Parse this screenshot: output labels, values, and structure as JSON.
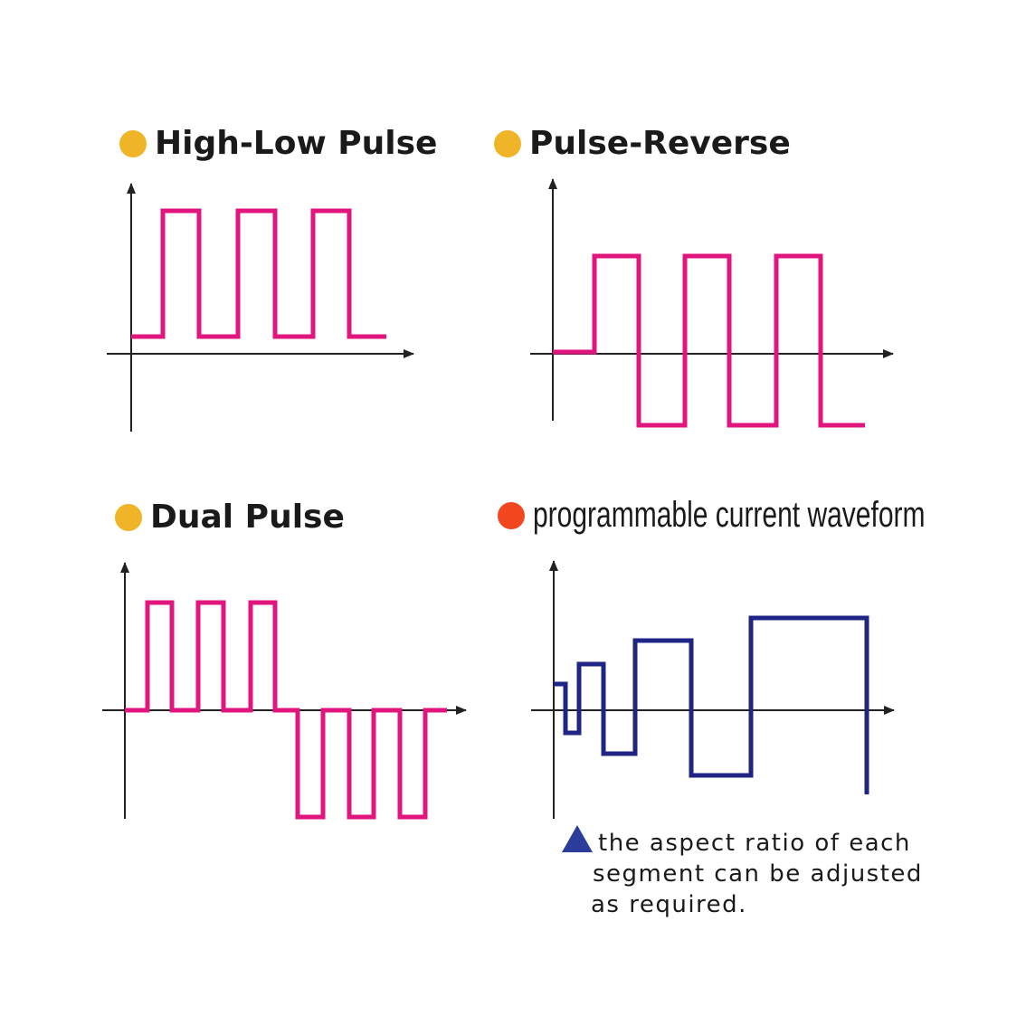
{
  "colors": {
    "dot_orange": "#f0b429",
    "dot_red": "#f2461f",
    "wave_magenta": "#e0157e",
    "wave_navy": "#1f2585",
    "axis": "#222222",
    "note_triangle": "#2b3c9b"
  },
  "panels": [
    {
      "id": "high-low",
      "title": "High-Low Pulse",
      "dot_color": "#f0b429"
    },
    {
      "id": "pulse-reverse",
      "title": "Pulse-Reverse",
      "dot_color": "#f0b429"
    },
    {
      "id": "dual",
      "title": "Dual Pulse",
      "dot_color": "#f0b429"
    },
    {
      "id": "programmable",
      "title": "programmable current waveform",
      "dot_color": "#f2461f"
    }
  ],
  "note": {
    "line1": "the aspect ratio of each",
    "line2": "segment can be adjusted",
    "line3": "as required."
  }
}
